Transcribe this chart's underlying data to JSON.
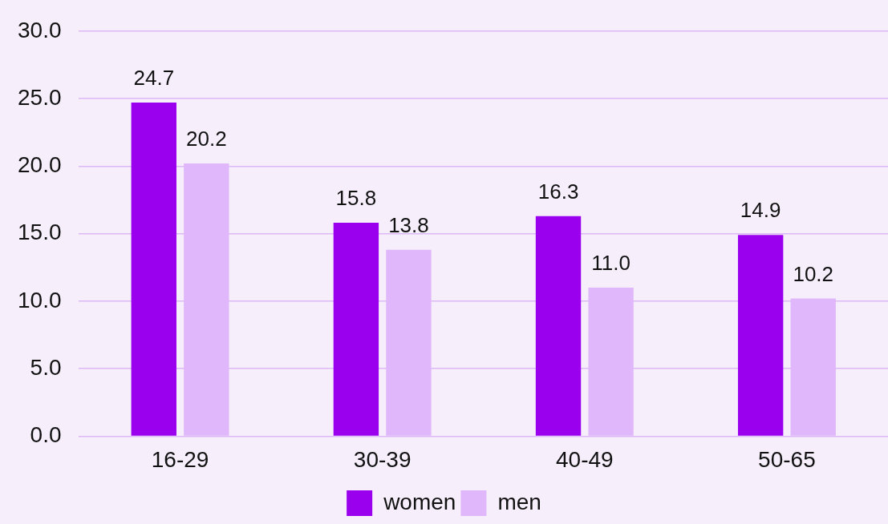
{
  "chart_data": {
    "type": "bar",
    "categories": [
      "16-29",
      "30-39",
      "40-49",
      "50-65"
    ],
    "series": [
      {
        "name": "women",
        "color": "#9b00ee",
        "values": [
          24.7,
          15.8,
          16.3,
          14.9
        ],
        "value_labels": [
          "24.7",
          "15.8",
          "16.3",
          "14.9"
        ]
      },
      {
        "name": "men",
        "color": "#e0b7fa",
        "values": [
          20.2,
          13.8,
          11.0,
          10.2
        ],
        "value_labels": [
          "20.2",
          "13.8",
          "11.0",
          "10.2"
        ]
      }
    ],
    "ylim": [
      0,
      30
    ],
    "yticks": [
      {
        "value": 0,
        "label": "0.0"
      },
      {
        "value": 5,
        "label": "5.0"
      },
      {
        "value": 10,
        "label": "10.0"
      },
      {
        "value": 15,
        "label": "15.0"
      },
      {
        "value": 20,
        "label": "20.0"
      },
      {
        "value": 25,
        "label": "25.0"
      },
      {
        "value": 30,
        "label": "30.0"
      }
    ],
    "grid": "y",
    "legend": "bottom"
  }
}
